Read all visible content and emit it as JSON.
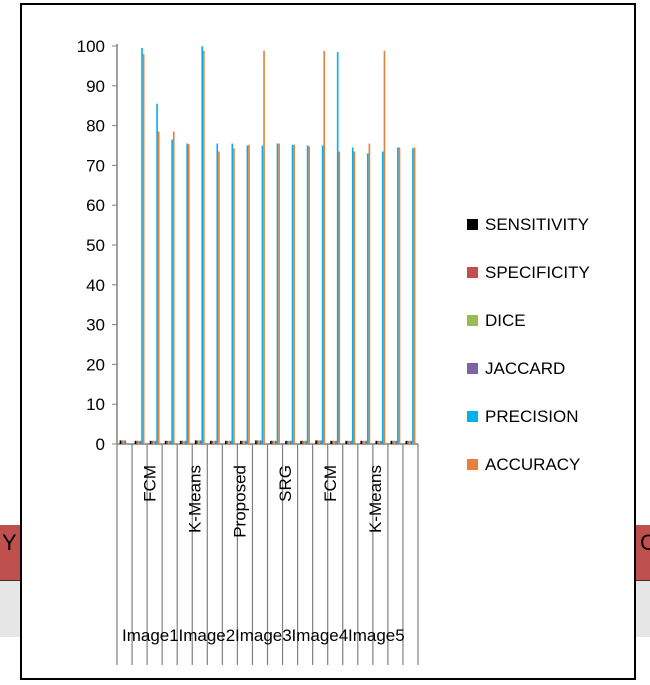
{
  "chart_data": {
    "type": "bar",
    "title": "",
    "xlabel": "",
    "ylabel": "",
    "ylim": [
      0,
      100
    ],
    "y_ticks": [
      "0",
      "10",
      "20",
      "30",
      "40",
      "50",
      "60",
      "70",
      "80",
      "90",
      "100"
    ],
    "legend_position": "right",
    "category_labels": [
      "FCM",
      "K-Means",
      "Proposed",
      "SRG",
      "FCM",
      "K-Means"
    ],
    "group_labels": [
      "Image1",
      "Image2",
      "Image3",
      "Image4",
      "Image5"
    ],
    "categories": [
      "1",
      "2",
      "3",
      "4",
      "5",
      "6",
      "7",
      "8",
      "9",
      "10",
      "11",
      "12",
      "13",
      "14",
      "15",
      "16",
      "17",
      "18",
      "19",
      "20"
    ],
    "series": [
      {
        "name": "SENSITIVITY",
        "color": "#000000",
        "values": [
          0.9,
          0.8,
          0.8,
          0.8,
          0.8,
          0.9,
          0.8,
          0.8,
          0.8,
          0.9,
          0.8,
          0.8,
          0.8,
          0.9,
          0.8,
          0.8,
          0.8,
          0.8,
          0.8,
          0.8
        ]
      },
      {
        "name": "SPECIFICITY",
        "color": "#c0504d",
        "values": [
          0.9,
          0.8,
          0.8,
          0.8,
          0.8,
          0.9,
          0.8,
          0.8,
          0.8,
          0.9,
          0.8,
          0.8,
          0.8,
          0.9,
          0.8,
          0.8,
          0.8,
          0.8,
          0.8,
          0.8
        ]
      },
      {
        "name": "DICE",
        "color": "#9bbb59",
        "values": [
          0.9,
          0.8,
          0.8,
          0.8,
          0.8,
          0.9,
          0.8,
          0.8,
          0.8,
          0.9,
          0.8,
          0.8,
          0.8,
          0.9,
          0.8,
          0.8,
          0.8,
          0.8,
          0.8,
          0.8
        ]
      },
      {
        "name": "JACCARD",
        "color": "#8064a2",
        "values": [
          0.9,
          0.8,
          0.8,
          0.8,
          0.8,
          0.9,
          0.8,
          0.8,
          0.8,
          0.9,
          0.8,
          0.8,
          0.8,
          0.9,
          0.8,
          0.8,
          0.8,
          0.8,
          0.8,
          0.8
        ]
      },
      {
        "name": "PRECISION",
        "color": "#00b0f0",
        "values": [
          0,
          99.5,
          85.5,
          76.5,
          75.5,
          99.9,
          75.5,
          75.5,
          75,
          75,
          75.5,
          75.2,
          75,
          75,
          98.5,
          74.5,
          73,
          73.5,
          74.5,
          74.3
        ]
      },
      {
        "name": "ACCURACY",
        "color": "#e5813a",
        "values": [
          0,
          98,
          78.5,
          78.5,
          75.3,
          98.8,
          73.5,
          74.3,
          75.2,
          98.8,
          75.5,
          75.2,
          74.8,
          98.8,
          73.5,
          73.5,
          75.5,
          98.8,
          74.5,
          74.5
        ]
      }
    ]
  },
  "background": {
    "left_fragment": "Y",
    "right_fragment": "C"
  }
}
